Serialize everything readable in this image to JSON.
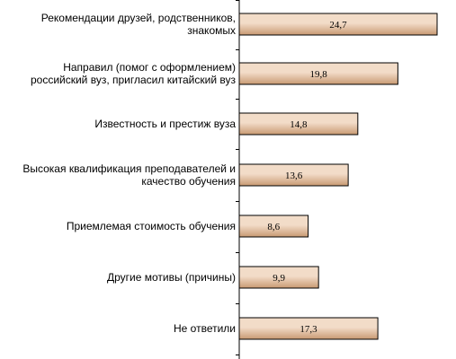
{
  "chart_data": {
    "type": "bar",
    "orientation": "horizontal",
    "categories": [
      "Рекомендации друзей, родственников, знакомых",
      "Направил (помог с оформлением) российский вуз, пригласил китайский вуз",
      "Известность и престиж вуза",
      "Высокая квалификация преподавателей и качество обучения",
      "Приемлемая стоимость обучения",
      "Другие мотивы (причины)",
      "Не ответили"
    ],
    "values": [
      24.7,
      19.8,
      14.8,
      13.6,
      8.6,
      9.9,
      17.3
    ],
    "value_labels": [
      "24,7",
      "19,8",
      "14,8",
      "13,6",
      "8,6",
      "9,9",
      "17,3"
    ],
    "xlim": [
      0,
      24.7
    ],
    "title": "",
    "xlabel": "",
    "ylabel": "",
    "grid": false,
    "legend": "none",
    "colors": {
      "bar_fill_light": "#F2DCC8",
      "bar_fill_dark": "#C89A72",
      "bar_stroke": "#000000",
      "axis": "#000000",
      "text": "#000000"
    }
  }
}
